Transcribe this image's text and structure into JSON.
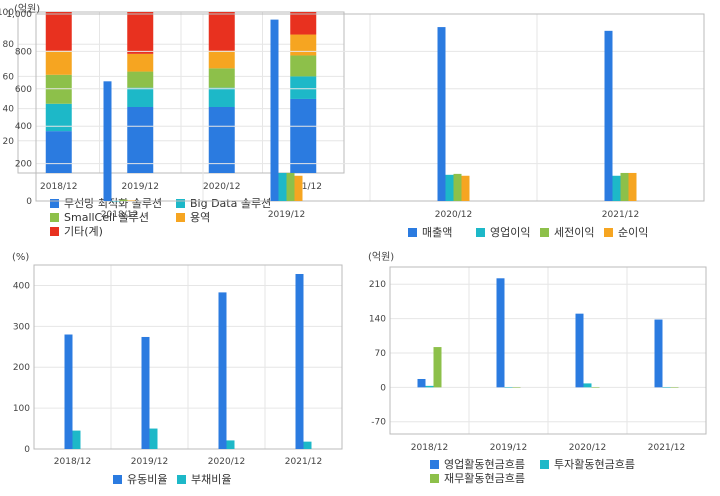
{
  "colors": {
    "blue": "#2b7be0",
    "cyan": "#1db8c8",
    "green": "#8dc04a",
    "orange": "#f6a521",
    "red": "#e8311f",
    "grid": "#e6e6e6",
    "border": "#bbbbbb"
  },
  "chart_data": [
    {
      "type": "bar",
      "stacked": true,
      "unit": "",
      "categories": [
        "2018/12",
        "2019/12",
        "2020/12",
        "2021/12"
      ],
      "ylim": [
        0,
        100
      ],
      "yticks": [
        20,
        40,
        60,
        80,
        100
      ],
      "legend_position": "bottom",
      "series": [
        {
          "name": "무선망 최적화 솔루션",
          "color": "#2b7be0",
          "values": [
            26,
            41,
            41,
            46
          ]
        },
        {
          "name": "Big Data 솔루션",
          "color": "#1db8c8",
          "values": [
            17,
            12,
            12,
            14
          ]
        },
        {
          "name": "SmallCell 솔루션",
          "color": "#8dc04a",
          "values": [
            18,
            10,
            12,
            13
          ]
        },
        {
          "name": "용역",
          "color": "#f6a521",
          "values": [
            15,
            11,
            11,
            13
          ]
        },
        {
          "name": "기타(계)",
          "color": "#e8311f",
          "values": [
            24,
            26,
            24,
            14
          ]
        }
      ]
    },
    {
      "type": "bar",
      "unit": "(억원)",
      "categories": [
        "2018/12",
        "2019/12",
        "2020/12",
        "2021/12"
      ],
      "ylim": [
        0,
        1000
      ],
      "yticks": [
        0,
        200,
        400,
        600,
        800,
        1000
      ],
      "ytick_labels": [
        "0",
        "200",
        "400",
        "600",
        "800",
        "1,000"
      ],
      "legend_position": "bottom",
      "series": [
        {
          "name": "매출액",
          "color": "#2b7be0",
          "values": [
            640,
            970,
            930,
            910
          ]
        },
        {
          "name": "영업이익",
          "color": "#1db8c8",
          "values": [
            0,
            150,
            140,
            135
          ]
        },
        {
          "name": "세전이익",
          "color": "#8dc04a",
          "values": [
            7,
            150,
            145,
            150
          ]
        },
        {
          "name": "순이익",
          "color": "#f6a521",
          "values": [
            3,
            135,
            135,
            150
          ]
        }
      ]
    },
    {
      "type": "bar",
      "unit": "(%)",
      "categories": [
        "2018/12",
        "2019/12",
        "2020/12",
        "2021/12"
      ],
      "ylim": [
        0,
        450
      ],
      "yticks": [
        0,
        100,
        200,
        300,
        400
      ],
      "legend_position": "bottom",
      "series": [
        {
          "name": "유동비율",
          "color": "#2b7be0",
          "values": [
            280,
            274,
            383,
            428
          ]
        },
        {
          "name": "부채비율",
          "color": "#1db8c8",
          "values": [
            45,
            50,
            21,
            18
          ]
        }
      ]
    },
    {
      "type": "bar",
      "unit": "(억원)",
      "categories": [
        "2018/12",
        "2019/12",
        "2020/12",
        "2021/12"
      ],
      "ylim": [
        -95,
        245
      ],
      "yticks": [
        -70,
        0,
        70,
        140,
        210
      ],
      "legend_position": "bottom",
      "series": [
        {
          "name": "영업활동현금흐름",
          "color": "#2b7be0",
          "values": [
            17,
            222,
            150,
            138
          ]
        },
        {
          "name": "투자활동현금흐름",
          "color": "#1db8c8",
          "values": [
            3,
            -73,
            8,
            -22
          ]
        },
        {
          "name": "재무활동현금흐름",
          "color": "#8dc04a",
          "values": [
            82,
            -10,
            -58,
            -27
          ]
        }
      ]
    }
  ]
}
